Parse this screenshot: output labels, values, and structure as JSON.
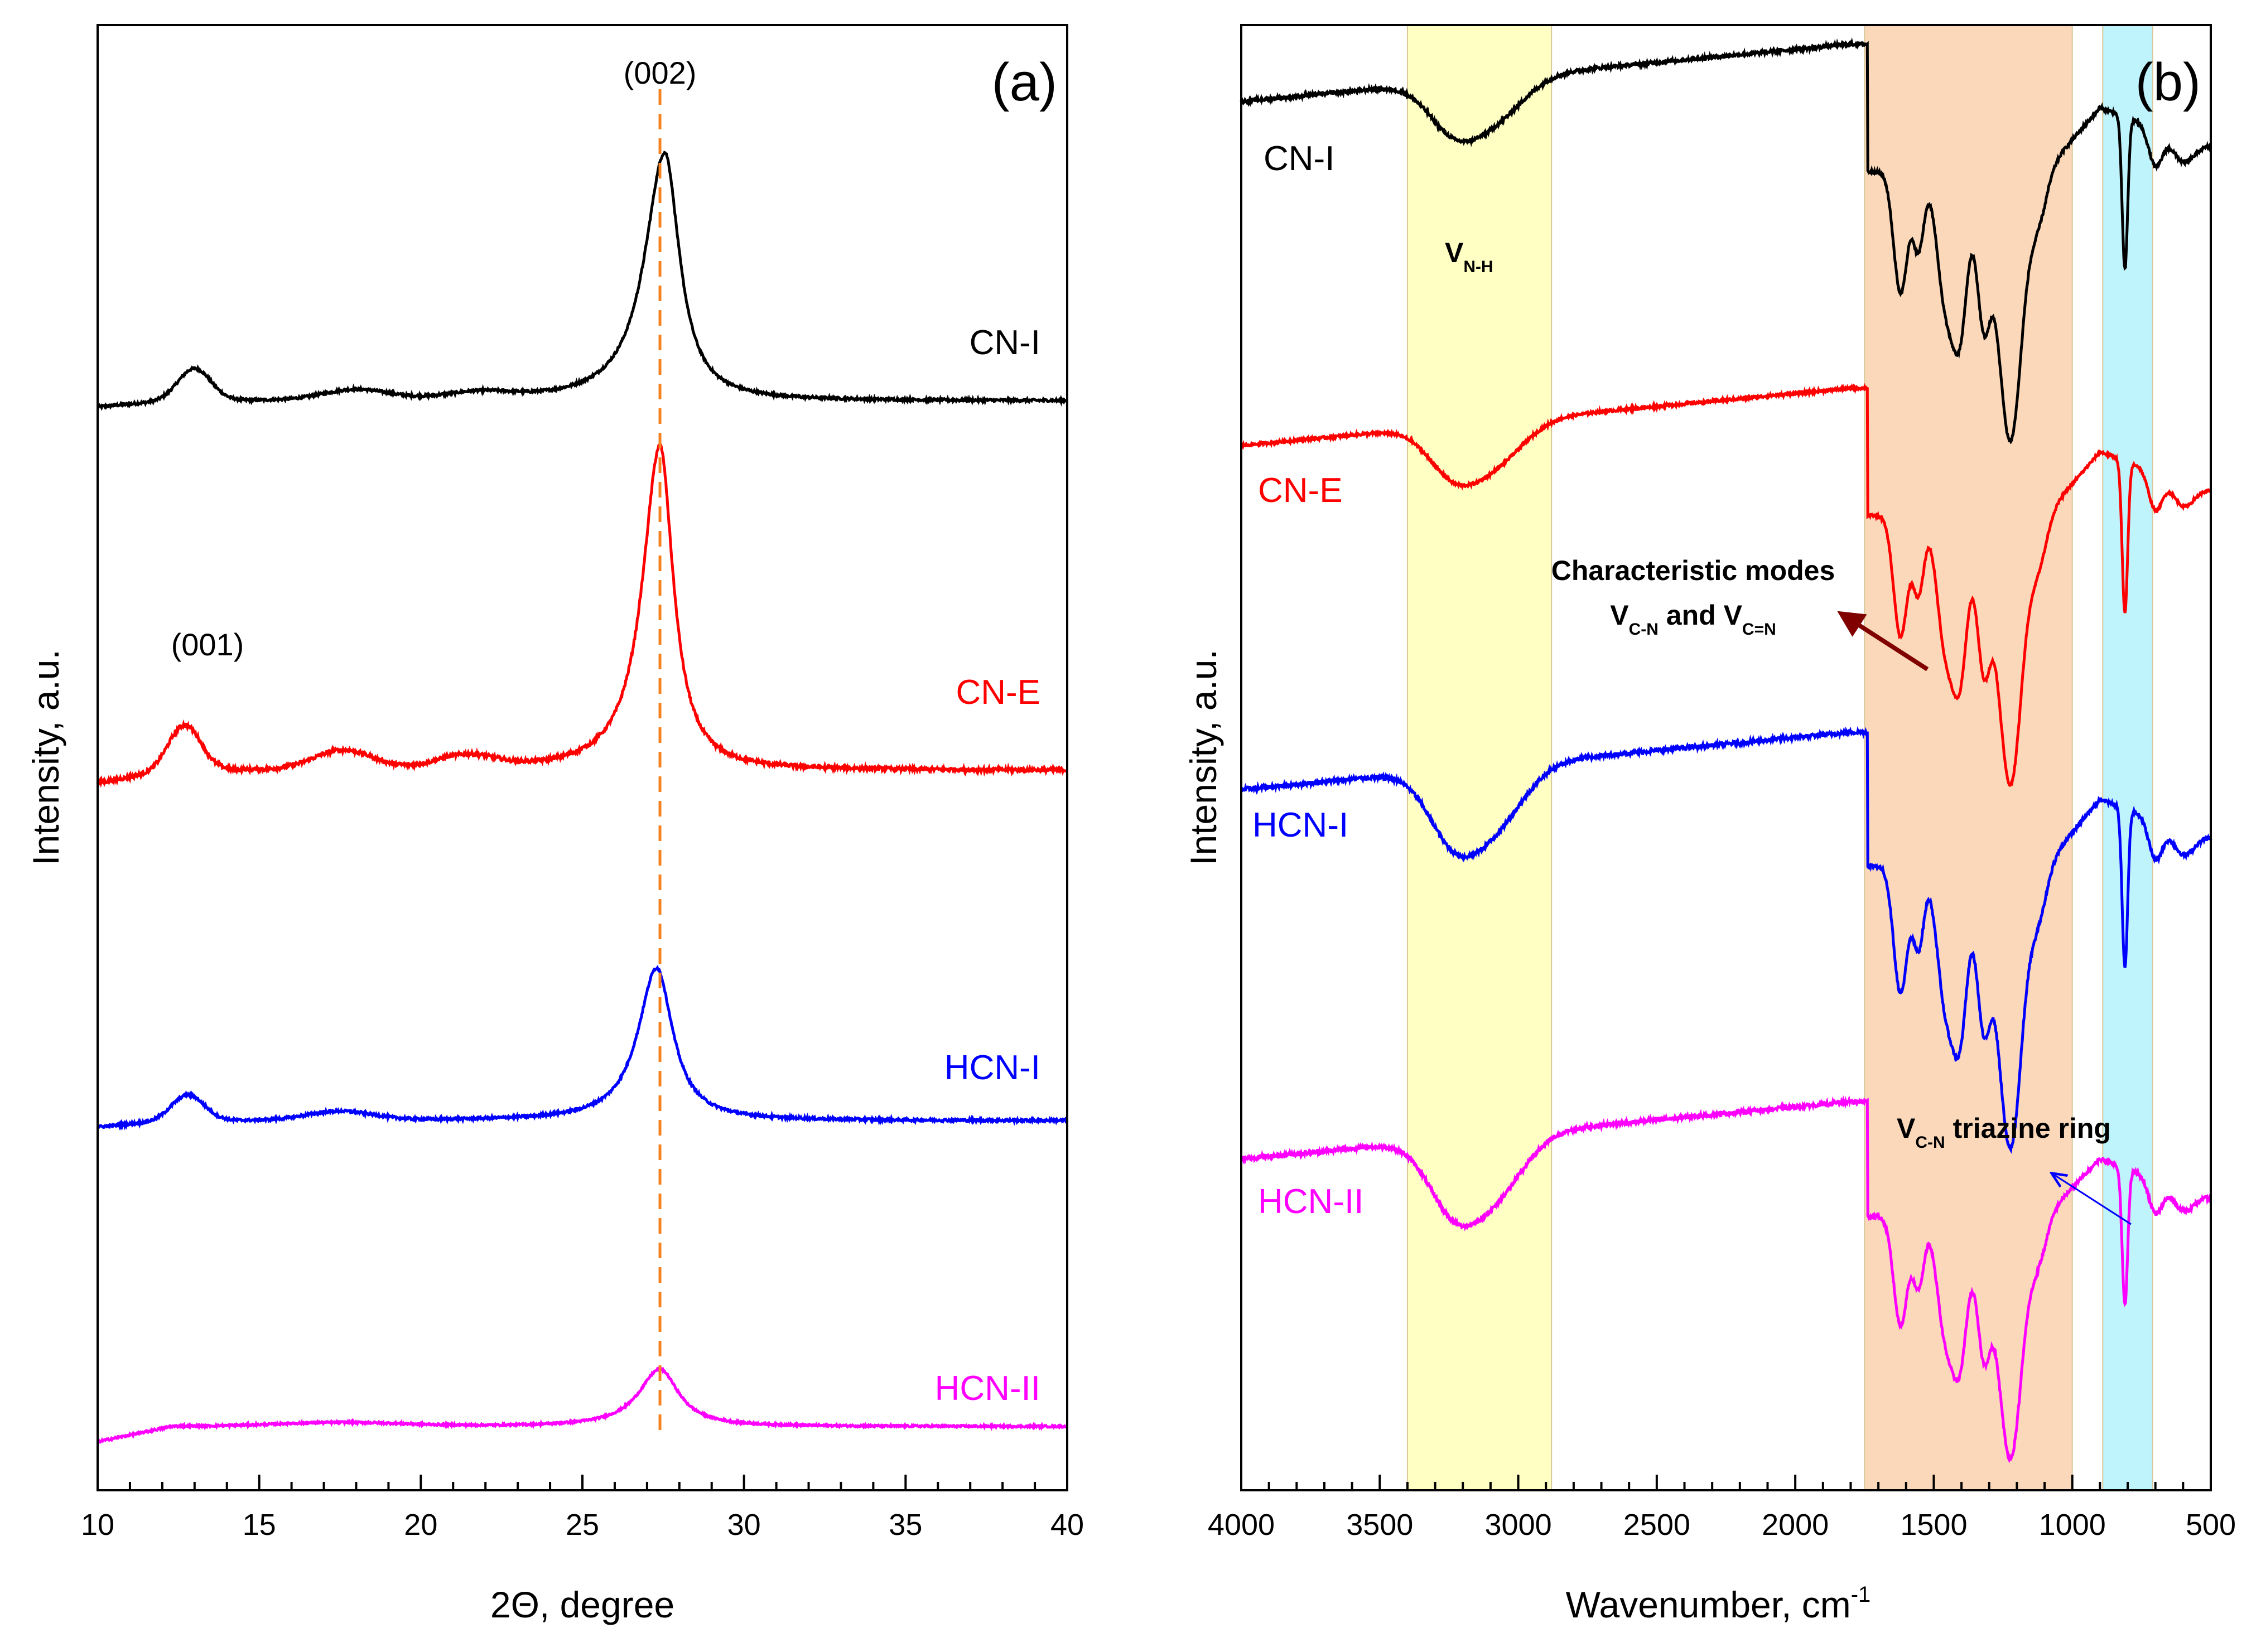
{
  "chart_data": [
    {
      "type": "line",
      "panel": "(a)",
      "xlabel": "2Θ, degree",
      "ylabel": "Intensity, a.u.",
      "xlim": [
        10,
        40
      ],
      "xticks": [
        10,
        15,
        20,
        25,
        30,
        35,
        40
      ],
      "ylim": [
        0,
        11.5
      ],
      "yticks_shown": false,
      "reference_line": {
        "x": 27.4,
        "color": "#f5821f",
        "style": "dashed"
      },
      "annotations": [
        {
          "text": "(002)",
          "x": 27.4
        },
        {
          "text": "(001)",
          "x": 13.4
        }
      ],
      "series": [
        {
          "name": "CN-I",
          "color": "#000000",
          "baseline": 8.55,
          "offset_start": -0.05,
          "humps": [
            [
              13.0,
              0.25,
              0.5
            ],
            [
              18.0,
              0.08,
              1.0
            ],
            [
              21.8,
              0.05,
              1.0
            ]
          ],
          "peak": {
            "x": 27.55,
            "height": 1.95,
            "width_left": 0.75,
            "width_right": 0.55
          },
          "noise": 0.02
        },
        {
          "name": "CN-E",
          "color": "#ff0000",
          "baseline": 5.65,
          "offset_start": -0.1,
          "humps": [
            [
              12.7,
              0.35,
              0.5
            ],
            [
              17.6,
              0.15,
              0.9
            ],
            [
              21.4,
              0.1,
              0.9
            ]
          ],
          "peak": {
            "x": 27.4,
            "height": 2.55,
            "width_left": 0.65,
            "width_right": 0.5
          },
          "noise": 0.03
        },
        {
          "name": "HCN-I",
          "color": "#0000ff",
          "baseline": 2.9,
          "offset_start": -0.05,
          "humps": [
            [
              12.8,
              0.2,
              0.5
            ],
            [
              17.5,
              0.07,
              1.0
            ]
          ],
          "peak": {
            "x": 27.3,
            "height": 1.2,
            "width_left": 0.7,
            "width_right": 0.6
          },
          "noise": 0.02
        },
        {
          "name": "HCN-II",
          "color": "#ff00ff",
          "baseline": 0.5,
          "offset_start": -0.12,
          "humps": [
            [
              17.5,
              0.03,
              2.0
            ]
          ],
          "peak": {
            "x": 27.4,
            "height": 0.45,
            "width_left": 0.8,
            "width_right": 0.7
          },
          "noise": 0.015
        }
      ]
    },
    {
      "type": "line",
      "panel": "(b)",
      "xlabel": "Wavenumber, cm",
      "xlabel_sup": "-1",
      "ylabel": "Intensity, a.u.",
      "xlim": [
        4000,
        500
      ],
      "xticks": [
        4000,
        3500,
        3000,
        2500,
        2000,
        1500,
        1000,
        500
      ],
      "ylim": [
        0,
        11.5
      ],
      "yticks_shown": false,
      "bands": [
        {
          "from": 3400,
          "to": 2880,
          "color": "#ffffc4"
        },
        {
          "from": 1750,
          "to": 1000,
          "color": "#fad8b9"
        },
        {
          "from": 890,
          "to": 710,
          "color": "#bff4fd"
        }
      ],
      "annotations": [
        {
          "text": "V",
          "sub": "N-H",
          "x": 3120
        },
        {
          "text": "Characteristic modes",
          "x": 1620
        },
        {
          "text": "V",
          "sub": "C-N",
          "text2": " and V",
          "sub2": "C=N",
          "x": 1600
        },
        {
          "text": "V",
          "sub": "C-N",
          "text2": " triazine ring",
          "x": 1380
        }
      ],
      "series": [
        {
          "name": "CN-I",
          "color": "#000000",
          "base": 10.9,
          "scale": 1.0,
          "nh_mode": "broad",
          "noise": 0.025
        },
        {
          "name": "CN-E",
          "color": "#ff0000",
          "base": 8.2,
          "scale": 1.0,
          "nh_mode": "medium",
          "noise": 0.02
        },
        {
          "name": "HCN-I",
          "color": "#0000ff",
          "base": 5.5,
          "scale": 1.05,
          "nh_mode": "sharp",
          "noise": 0.03
        },
        {
          "name": "HCN-II",
          "color": "#ff00ff",
          "base": 2.6,
          "scale": 0.9,
          "nh_mode": "sharp",
          "noise": 0.03
        }
      ],
      "ir_bands": [
        {
          "x": 3240,
          "depth": 0.35,
          "width": 90
        },
        {
          "x": 3090,
          "depth": 0.35,
          "width": 110
        },
        {
          "x": 1620,
          "depth": 0.95,
          "width": 25
        },
        {
          "x": 1555,
          "depth": 0.6,
          "width": 20
        },
        {
          "x": 1460,
          "depth": 0.95,
          "width": 30
        },
        {
          "x": 1405,
          "depth": 1.2,
          "width": 28
        },
        {
          "x": 1320,
          "depth": 1.15,
          "width": 25
        },
        {
          "x": 1240,
          "depth": 1.6,
          "width": 35
        },
        {
          "x": 1200,
          "depth": 0.9,
          "width": 30
        },
        {
          "x": 1135,
          "depth": 0.45,
          "width": 35
        },
        {
          "x": 810,
          "depth": 1.2,
          "width": 10
        },
        {
          "x": 700,
          "depth": 0.3,
          "width": 25
        },
        {
          "x": 600,
          "depth": 0.2,
          "width": 40
        }
      ]
    }
  ]
}
